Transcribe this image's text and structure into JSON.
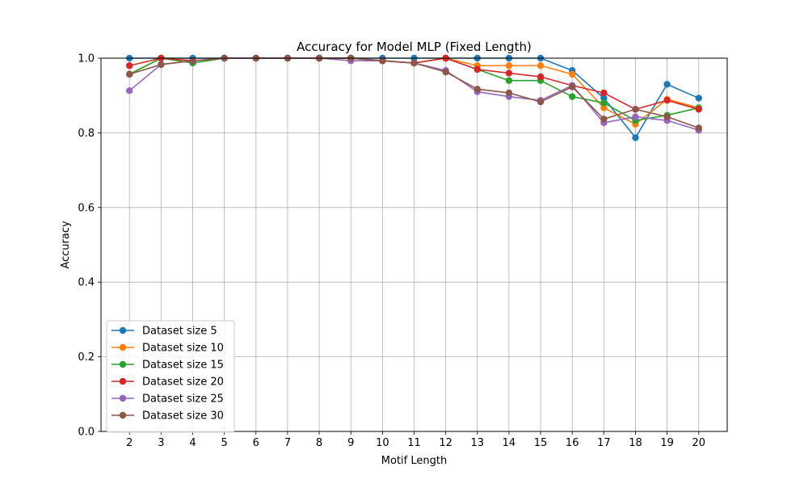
{
  "chart_data": {
    "type": "line",
    "title": "Accuracy for Model MLP (Fixed Length)",
    "xlabel": "Motif Length",
    "ylabel": "Accuracy",
    "x": [
      2,
      3,
      4,
      5,
      6,
      7,
      8,
      9,
      10,
      11,
      12,
      13,
      14,
      15,
      16,
      17,
      18,
      19,
      20
    ],
    "xlim": [
      1.1,
      20.9
    ],
    "ylim": [
      0,
      1.0
    ],
    "yticks": [
      0.0,
      0.2,
      0.4,
      0.6,
      0.8,
      1.0
    ],
    "ytick_labels": [
      "0.0",
      "0.2",
      "0.4",
      "0.6",
      "0.8",
      "1.0"
    ],
    "grid": true,
    "legend_position": "lower-left",
    "series": [
      {
        "name": "Dataset size 5",
        "color": "#1f77b4",
        "values": [
          1.0,
          1.0,
          1.0,
          1.0,
          1.0,
          1.0,
          1.0,
          1.0,
          1.0,
          1.0,
          1.0,
          1.0,
          1.0,
          1.0,
          0.967,
          0.893,
          0.787,
          0.93,
          0.893
        ]
      },
      {
        "name": "Dataset size 10",
        "color": "#ff7f0e",
        "values": [
          0.957,
          1.0,
          0.993,
          1.0,
          1.0,
          1.0,
          1.0,
          1.0,
          0.993,
          0.987,
          1.0,
          0.98,
          0.98,
          0.98,
          0.957,
          0.867,
          0.823,
          0.89,
          0.867
        ]
      },
      {
        "name": "Dataset size 15",
        "color": "#2ca02c",
        "values": [
          0.957,
          1.0,
          0.987,
          1.0,
          1.0,
          1.0,
          1.0,
          1.0,
          0.993,
          0.987,
          1.0,
          0.97,
          0.94,
          0.94,
          0.897,
          0.88,
          0.833,
          0.847,
          0.867
        ]
      },
      {
        "name": "Dataset size 20",
        "color": "#d62728",
        "values": [
          0.98,
          1.0,
          0.993,
          1.0,
          1.0,
          1.0,
          1.0,
          1.0,
          0.993,
          0.987,
          1.0,
          0.97,
          0.96,
          0.95,
          0.927,
          0.907,
          0.863,
          0.887,
          0.863
        ]
      },
      {
        "name": "Dataset size 25",
        "color": "#9467bd",
        "values": [
          0.913,
          0.983,
          0.993,
          1.0,
          1.0,
          1.0,
          1.0,
          0.993,
          0.993,
          0.987,
          0.967,
          0.91,
          0.897,
          0.887,
          0.927,
          0.827,
          0.843,
          0.833,
          0.807
        ]
      },
      {
        "name": "Dataset size 30",
        "color": "#8c564b",
        "values": [
          0.957,
          0.983,
          0.993,
          1.0,
          1.0,
          1.0,
          1.0,
          1.0,
          0.993,
          0.987,
          0.963,
          0.917,
          0.907,
          0.883,
          0.923,
          0.837,
          0.863,
          0.843,
          0.813
        ]
      }
    ]
  }
}
